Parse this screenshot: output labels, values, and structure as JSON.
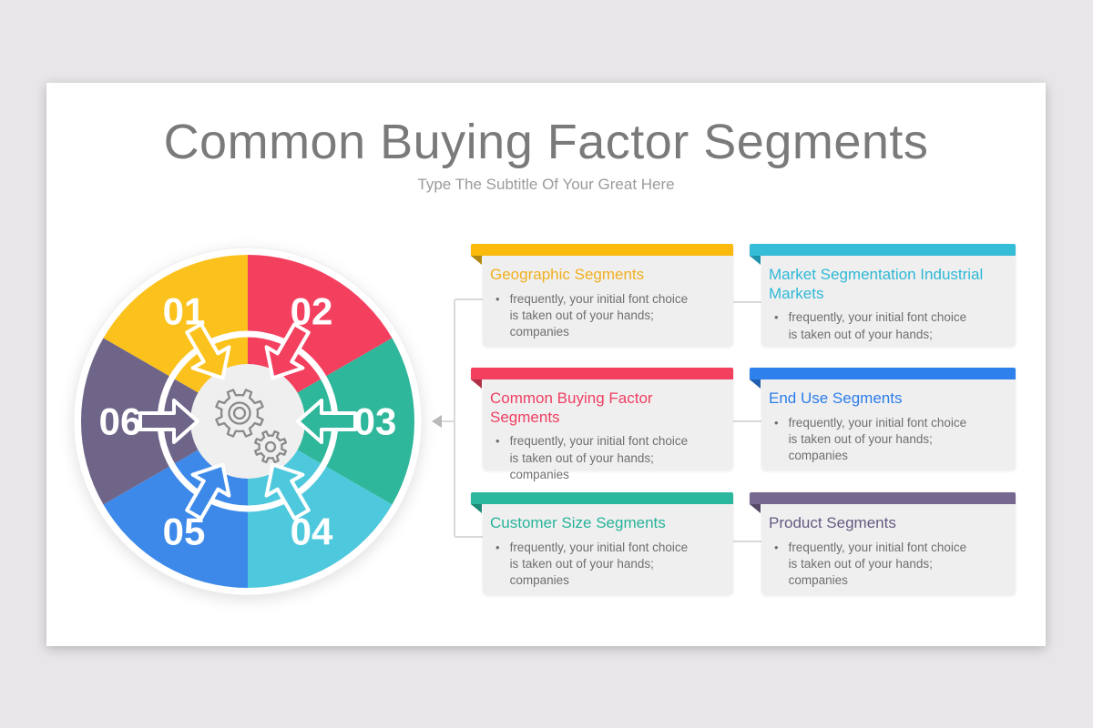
{
  "slide": {
    "title": "Common Buying Factor Segments",
    "subtitle": "Type The Subtitle Of Your Great Here",
    "bullet_marker": "•"
  },
  "wheel": {
    "center_icon": "gears-icon",
    "pointer_color": "#b9b9b9",
    "segments": [
      {
        "label": "01",
        "color": "#FBC21D"
      },
      {
        "label": "02",
        "color": "#F4405F"
      },
      {
        "label": "03",
        "color": "#2EB79B"
      },
      {
        "label": "04",
        "color": "#4EC8DC"
      },
      {
        "label": "05",
        "color": "#3C89EA"
      },
      {
        "label": "06",
        "color": "#6F6588"
      }
    ]
  },
  "cards": [
    {
      "title": "Geographic Segments",
      "title_color": "#F0B01E",
      "accent": "#FBBA0C",
      "fold_color": "#B08710",
      "bullet": "frequently, your initial font choice\nis taken out of your hands;\ncompanies"
    },
    {
      "title": "Market Segmentation Industrial\nMarkets",
      "title_color": "#2EB9D6",
      "accent": "#35BDD8",
      "fold_color": "#1F93AB",
      "bullet": "frequently, your initial font choice\nis taken out of your hands;"
    },
    {
      "title": "Common Buying Factor Segments",
      "title_color": "#EE3F60",
      "accent": "#F4405F",
      "fold_color": "#B03048",
      "bullet": "frequently, your initial font choice\nis taken out of your hands;\ncompanies"
    },
    {
      "title": "End Use Segments",
      "title_color": "#2B7DE9",
      "accent": "#2E80EC",
      "fold_color": "#2160AE",
      "bullet": "frequently, your initial font choice\nis taken out of your hands;\ncompanies"
    },
    {
      "title": "Customer Size Segments",
      "title_color": "#27B399",
      "accent": "#2BB89E",
      "fold_color": "#1E8A75",
      "bullet": "frequently, your initial font choice\nis taken out of your hands;\ncompanies"
    },
    {
      "title": "Product Segments",
      "title_color": "#655A80",
      "accent": "#77688F",
      "fold_color": "#544A68",
      "bullet": "frequently, your initial font choice\nis taken out of your hands;\ncompanies"
    }
  ]
}
